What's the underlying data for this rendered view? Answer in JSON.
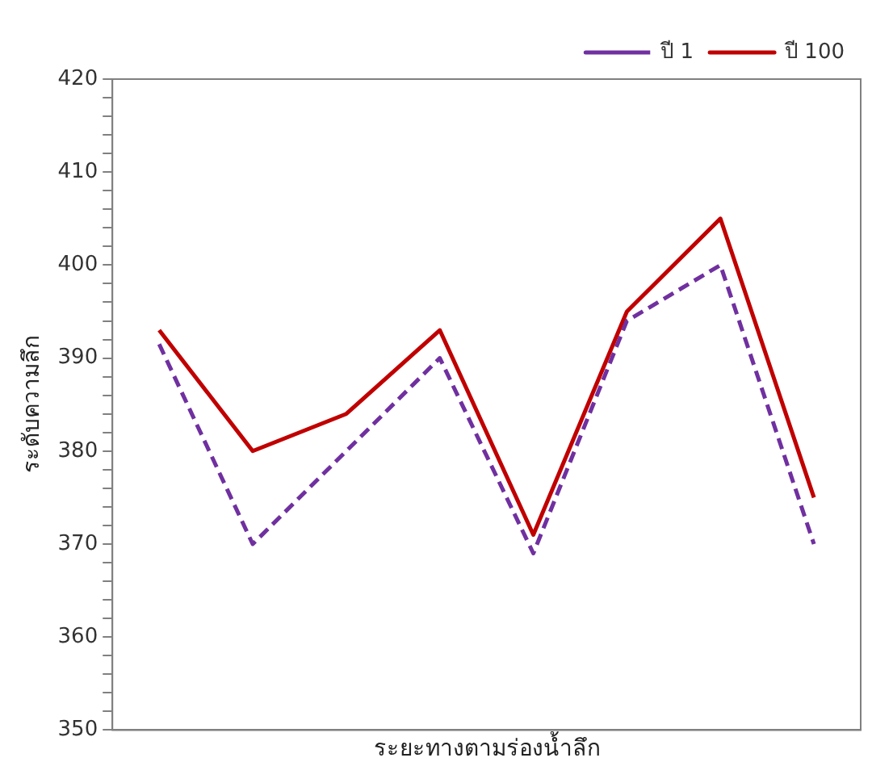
{
  "chart_data": {
    "type": "line",
    "xlabel": "ระยะทางตามร่องน้ำลึก",
    "ylabel": "ระดับความลึก",
    "categories": [
      null,
      null,
      null,
      null,
      null,
      null,
      null,
      null
    ],
    "series": [
      {
        "name": "ปี 1",
        "color": "#7030a0",
        "line_style": "dashed",
        "values": [
          391.5,
          370,
          380,
          390,
          369,
          394,
          400,
          370
        ]
      },
      {
        "name": "ปี 100",
        "color": "#c00000",
        "line_style": "solid",
        "values": [
          393,
          380,
          384,
          393,
          371,
          395,
          405,
          375
        ]
      }
    ],
    "ylim": [
      350,
      420
    ],
    "yticks": [
      350,
      {
        "value": 352,
        "label": null
      },
      {
        "value": 354,
        "label": null
      },
      {
        "value": 356,
        "label": null
      },
      {
        "value": 358,
        "label": null
      },
      360,
      {
        "value": 362,
        "label": null
      },
      {
        "value": 364,
        "label": null
      },
      {
        "value": 366,
        "label": null
      },
      {
        "value": 368,
        "label": null
      },
      370,
      {
        "value": 372,
        "label": null
      },
      {
        "value": 374,
        "label": null
      },
      {
        "value": 376,
        "label": null
      },
      {
        "value": 378,
        "label": null
      },
      380,
      {
        "value": 382,
        "label": null
      },
      {
        "value": 384,
        "label": null
      },
      {
        "value": 386,
        "label": null
      },
      {
        "value": 388,
        "label": null
      },
      390,
      {
        "value": 392,
        "label": null
      },
      {
        "value": 394,
        "label": null
      },
      {
        "value": 396,
        "label": null
      },
      {
        "value": 398,
        "label": null
      },
      400,
      {
        "value": 402,
        "label": null
      },
      {
        "value": 404,
        "label": null
      },
      {
        "value": 406,
        "label": null
      },
      {
        "value": 408,
        "label": null
      },
      410,
      {
        "value": 412,
        "label": null
      },
      {
        "value": 414,
        "label": null
      },
      {
        "value": 416,
        "label": null
      },
      {
        "value": 418,
        "label": null
      },
      420
    ],
    "tick_labels": "y",
    "grid": false,
    "legend": "top right",
    "marker": "none"
  }
}
